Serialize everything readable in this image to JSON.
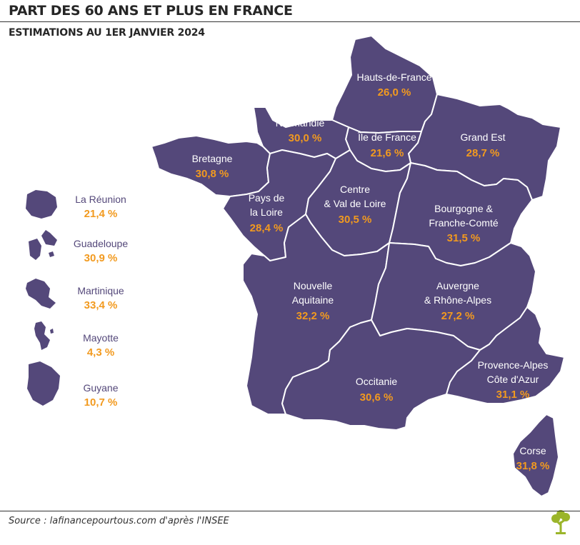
{
  "header": {
    "title": "PART DES 60 ANS ET PLUS EN FRANCE",
    "subtitle": "ESTIMATIONS AU 1ER JANVIER 2024"
  },
  "colors": {
    "region_fill": "#54487a",
    "value_text": "#f29a1f",
    "border": "#ffffff"
  },
  "regions": {
    "hauts_de_france": {
      "name": "Hauts-de-France",
      "value": "26,0 %"
    },
    "normandie": {
      "name": "Normandie",
      "value": "30,0 %"
    },
    "ile_de_france": {
      "name": "Île de France",
      "value": "21,6 %"
    },
    "grand_est": {
      "name": "Grand Est",
      "value": "28,7 %"
    },
    "bretagne": {
      "name": "Bretagne",
      "value": "30,8 %"
    },
    "pays_de_la_loire": {
      "name_line1": "Pays de",
      "name_line2": "la Loire",
      "value": "28,4 %"
    },
    "centre_val_de_loire": {
      "name_line1": "Centre",
      "name_line2": "& Val de Loire",
      "value": "30,5 %"
    },
    "bourgogne_franche_comte": {
      "name_line1": "Bourgogne &",
      "name_line2": "Franche-Comté",
      "value": "31,5 %"
    },
    "nouvelle_aquitaine": {
      "name_line1": "Nouvelle",
      "name_line2": "Aquitaine",
      "value": "32,2 %"
    },
    "auvergne_rhone_alpes": {
      "name_line1": "Auvergne",
      "name_line2": "& Rhône-Alpes",
      "value": "27,2 %"
    },
    "occitanie": {
      "name": "Occitanie",
      "value": "30,6 %"
    },
    "provence_alpes_cote_dazur": {
      "name_line1": "Provence-Alpes",
      "name_line2": "Côte d'Azur",
      "value": "31,1 %"
    },
    "corse": {
      "name": "Corse",
      "value": "31,8 %"
    }
  },
  "overseas": {
    "la_reunion": {
      "name": "La Réunion",
      "value": "21,4 %",
      "icon": "la-reunion-shape"
    },
    "guadeloupe": {
      "name": "Guadeloupe",
      "value": "30,9 %",
      "icon": "guadeloupe-shape"
    },
    "martinique": {
      "name": "Martinique",
      "value": "33,4 %",
      "icon": "martinique-shape"
    },
    "mayotte": {
      "name": "Mayotte",
      "value": "4,3 %",
      "icon": "mayotte-shape"
    },
    "guyane": {
      "name": "Guyane",
      "value": "10,7 %",
      "icon": "guyane-shape"
    }
  },
  "footer": {
    "source": "Source : lafinancepourtous.com d'après l'INSEE"
  }
}
